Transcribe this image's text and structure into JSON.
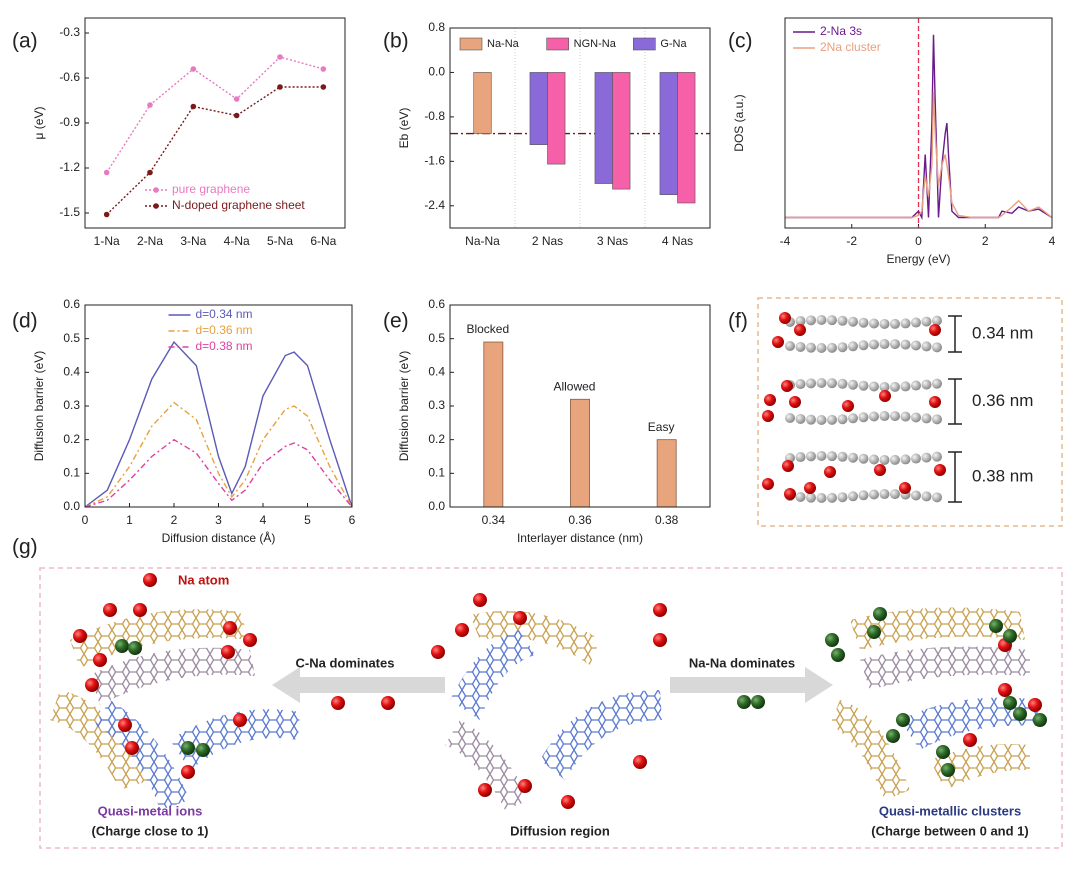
{
  "chart_data": [
    {
      "type": "line",
      "label": "(a)",
      "ylabel": "μ (eV)",
      "categories": [
        "1-Na",
        "2-Na",
        "3-Na",
        "4-Na",
        "5-Na",
        "6-Na"
      ],
      "series": [
        {
          "name": "pure graphene",
          "color": "#e87ac0",
          "style": "dotted",
          "values": [
            -1.23,
            -0.78,
            -0.54,
            -0.74,
            -0.46,
            -0.54
          ]
        },
        {
          "name": "N-doped graphene sheet",
          "color": "#7a1a1a",
          "style": "dotted",
          "values": [
            -1.51,
            -1.23,
            -0.79,
            -0.85,
            -0.66,
            -0.66
          ]
        }
      ],
      "ylim": [
        -1.6,
        -0.2
      ],
      "yticks": [
        -1.5,
        -1.2,
        -0.9,
        -0.6,
        -0.3
      ],
      "markers": true,
      "legend": "lower center"
    },
    {
      "type": "bar",
      "label": "(b)",
      "ylabel": "Eb (eV)",
      "categories": [
        "Na-Na",
        "2 Nas",
        "3 Nas",
        "4 Nas"
      ],
      "series": [
        {
          "name": "Na-Na",
          "color": "#e8a47c",
          "values": [
            -1.1,
            null,
            null,
            null
          ]
        },
        {
          "name": "NGN-Na",
          "color": "#f560a8",
          "values": [
            null,
            -1.65,
            -2.1,
            -2.35
          ]
        },
        {
          "name": "G-Na",
          "color": "#8a6ad8",
          "values": [
            null,
            -1.3,
            -2.0,
            -2.2
          ]
        }
      ],
      "ylim": [
        -2.8,
        0.8
      ],
      "yticks": [
        -2.4,
        -1.6,
        -0.8,
        {
          "value": 0,
          "label": "0.0"
        },
        0.8
      ],
      "hline": -1.1,
      "legend": "upper center"
    },
    {
      "type": "line",
      "label": "(c)",
      "xlabel": "Energy (eV)",
      "ylabel": "DOS (a.u.)",
      "x": [
        -4,
        -2,
        -0.2,
        0,
        0.1,
        0.2,
        0.3,
        0.4,
        0.45,
        0.5,
        0.6,
        0.7,
        0.8,
        0.85,
        0.9,
        1.0,
        1.2,
        1.6,
        2.4,
        2.5,
        2.8,
        3.0,
        3.3,
        3.6,
        4
      ],
      "series": [
        {
          "name": "2-Na 3s",
          "color": "#6a1a8a",
          "style": "solid",
          "values": [
            0.05,
            0.05,
            0.05,
            0.08,
            0.05,
            0.35,
            0.05,
            0.5,
            0.92,
            0.6,
            0.05,
            0.3,
            0.45,
            0.5,
            0.35,
            0.08,
            0.05,
            0.05,
            0.05,
            0.08,
            0.07,
            0.1,
            0.08,
            0.09,
            0.05
          ]
        },
        {
          "name": "2Na cluster",
          "color": "#e8a080",
          "style": "solid",
          "values": [
            0.05,
            0.05,
            0.05,
            0.06,
            0.08,
            0.25,
            0.15,
            0.3,
            0.65,
            0.45,
            0.2,
            0.3,
            0.35,
            0.3,
            0.25,
            0.12,
            0.06,
            0.05,
            0.05,
            0.06,
            0.1,
            0.13,
            0.08,
            0.1,
            0.05
          ]
        }
      ],
      "xlim": [
        -4,
        4
      ],
      "xticks": [
        -4,
        -2,
        0,
        2,
        4
      ],
      "ylim": [
        0,
        1
      ],
      "vline": 0,
      "legend": "upper left"
    },
    {
      "type": "line",
      "label": "(d)",
      "xlabel": "Diffusion distance (Å)",
      "ylabel": "Diffusion barrier (eV)",
      "x": [
        0,
        0.5,
        1,
        1.5,
        2,
        2.5,
        3,
        3.3,
        3.6,
        4,
        4.5,
        4.7,
        5,
        5.5,
        6
      ],
      "series": [
        {
          "name": "d=0.34 nm",
          "color": "#5a5ab8",
          "style": "solid",
          "values": [
            0,
            0.05,
            0.2,
            0.38,
            0.49,
            0.42,
            0.15,
            0.04,
            0.12,
            0.33,
            0.45,
            0.46,
            0.42,
            0.2,
            0
          ]
        },
        {
          "name": "d=0.36 nm",
          "color": "#e8a040",
          "style": "dashdot",
          "values": [
            0,
            0.03,
            0.12,
            0.24,
            0.31,
            0.26,
            0.1,
            0.03,
            0.08,
            0.2,
            0.29,
            0.3,
            0.27,
            0.12,
            0
          ]
        },
        {
          "name": "d=0.38 nm",
          "color": "#e040a0",
          "style": "dashdot",
          "values": [
            0,
            0.02,
            0.08,
            0.15,
            0.2,
            0.16,
            0.07,
            0.02,
            0.05,
            0.13,
            0.18,
            0.19,
            0.17,
            0.08,
            0
          ]
        }
      ],
      "xlim": [
        0,
        6
      ],
      "xticks": [
        0,
        1,
        2,
        3,
        4,
        5,
        6
      ],
      "ylim": [
        0,
        0.6
      ],
      "yticks": [
        {
          "value": 0,
          "label": "0.0"
        },
        0.1,
        0.2,
        0.3,
        0.4,
        0.5,
        0.6
      ],
      "legend": "upper center"
    },
    {
      "type": "bar",
      "label": "(e)",
      "xlabel": "Interlayer distance (nm)",
      "ylabel": "Diffusion barrier (eV)",
      "categories": [
        "0.34",
        "0.36",
        "0.38"
      ],
      "values": [
        0.49,
        0.32,
        0.2
      ],
      "color": "#e8a47c",
      "annotations": [
        "Blocked",
        "Allowed",
        "Easy"
      ],
      "ylim": [
        0,
        0.6
      ],
      "yticks": [
        {
          "value": 0,
          "label": "0.0"
        },
        0.1,
        0.2,
        0.3,
        0.4,
        0.5,
        0.6
      ]
    }
  ],
  "diagram_f": {
    "label": "(f)",
    "spacings": [
      "0.34 nm",
      "0.36 nm",
      "0.38 nm"
    ]
  },
  "schematic_g": {
    "label": "(g)",
    "legend_label": "Na atom",
    "left_arrow": "C-Na dominates",
    "right_arrow": "Na-Na dominates",
    "left_title": "Quasi-metal ions",
    "left_note": "(Charge close to 1)",
    "center_title": "Diffusion region",
    "right_title": "Quasi-metallic clusters",
    "right_note": "(Charge between 0 and 1)"
  }
}
